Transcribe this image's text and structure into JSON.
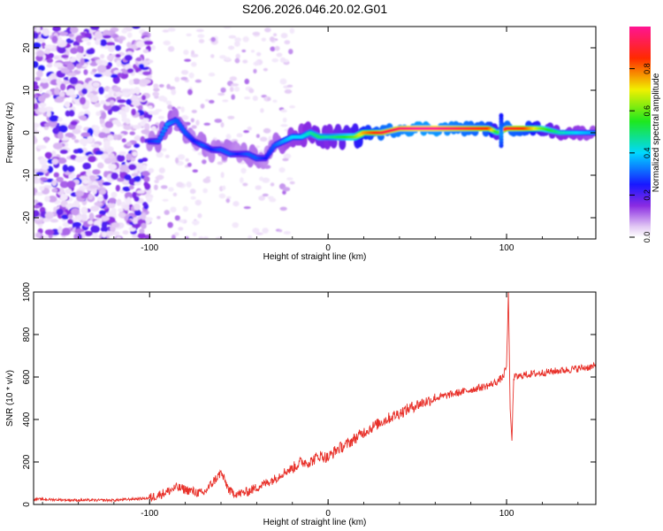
{
  "figure_title": "S206.2026.046.20.02.G01",
  "colors": {
    "snr_line": "#e8312a",
    "axis": "#000000",
    "background": "#ffffff"
  },
  "chart_data": [
    {
      "type": "heatmap",
      "name": "spectrogram",
      "title": "",
      "xlabel": "Height of straight line (km)",
      "ylabel": "Frequency (Hz)",
      "xlim": [
        -165,
        150
      ],
      "ylim": [
        -25,
        25
      ],
      "xticks": [
        -100,
        0,
        100
      ],
      "xtick_labels": [
        "-100",
        "0",
        "100"
      ],
      "yticks": [
        -20,
        -10,
        0,
        10,
        20
      ],
      "ytick_labels": [
        "-20",
        "-10",
        "0",
        "10",
        "20"
      ],
      "colorbar": {
        "label": "Normalized spectral amplitude",
        "range": [
          0.0,
          1.0
        ],
        "ticks": [
          0.0,
          0.2,
          0.4,
          0.6,
          0.8
        ],
        "tick_labels": [
          "0.0",
          "0.2",
          "0.4",
          "0.6",
          "0.8"
        ],
        "colormap": "rainbow (white→violet→blue→cyan→green→yellow→red→magenta)"
      },
      "ridge": {
        "description": "dominant spectral line of frequency vs height",
        "x": [
          -100,
          -95,
          -90,
          -85,
          -80,
          -75,
          -70,
          -65,
          -60,
          -55,
          -50,
          -45,
          -40,
          -35,
          -30,
          -25,
          -20,
          -15,
          -10,
          -5,
          0,
          5,
          10,
          15,
          20,
          30,
          40,
          50,
          60,
          70,
          80,
          90,
          95,
          100,
          110,
          120,
          130,
          140,
          150
        ],
        "y": [
          -2,
          -2,
          2,
          3,
          0,
          -2,
          -3,
          -4,
          -4,
          -5,
          -5,
          -5,
          -6,
          -6,
          -3,
          -2,
          -1,
          -1,
          0,
          -1,
          -1,
          -1,
          -1,
          -1,
          0,
          0,
          1,
          1,
          1,
          1,
          1,
          1,
          0,
          1,
          1,
          1,
          0,
          0,
          0
        ],
        "amplitude": [
          0.25,
          0.3,
          0.35,
          0.3,
          0.3,
          0.25,
          0.3,
          0.25,
          0.3,
          0.3,
          0.25,
          0.3,
          0.3,
          0.25,
          0.3,
          0.35,
          0.4,
          0.4,
          0.45,
          0.5,
          0.45,
          0.5,
          0.55,
          0.6,
          0.75,
          0.9,
          0.95,
          1.0,
          1.0,
          0.95,
          0.9,
          0.85,
          0.5,
          0.9,
          0.85,
          0.6,
          0.45,
          0.4,
          0.35
        ]
      },
      "noise_region_x": [
        -165,
        -100
      ]
    },
    {
      "type": "line",
      "name": "snr",
      "title": "",
      "xlabel": "Height of straight line (km)",
      "ylabel": "SNR (10 * v/v)",
      "xlim": [
        -165,
        150
      ],
      "ylim": [
        0,
        1000
      ],
      "xticks": [
        -100,
        0,
        100
      ],
      "xtick_labels": [
        "-100",
        "0",
        "100"
      ],
      "yticks": [
        0,
        200,
        400,
        600,
        800,
        1000
      ],
      "ytick_labels": [
        "0",
        "200",
        "400",
        "600",
        "800",
        "1000"
      ],
      "series": [
        {
          "name": "SNR",
          "x": [
            -165,
            -140,
            -120,
            -100,
            -90,
            -85,
            -80,
            -75,
            -70,
            -65,
            -60,
            -55,
            -50,
            -45,
            -40,
            -35,
            -30,
            -25,
            -20,
            -15,
            -10,
            -5,
            0,
            5,
            10,
            20,
            30,
            40,
            50,
            60,
            70,
            80,
            90,
            95,
            98,
            100,
            101,
            102,
            103,
            104,
            106,
            110,
            120,
            130,
            140,
            150
          ],
          "y": [
            25,
            20,
            20,
            30,
            60,
            80,
            70,
            60,
            50,
            100,
            150,
            60,
            50,
            60,
            80,
            100,
            120,
            150,
            170,
            200,
            200,
            230,
            220,
            260,
            280,
            340,
            390,
            430,
            470,
            500,
            520,
            540,
            560,
            580,
            600,
            650,
            1000,
            450,
            300,
            600,
            600,
            610,
            620,
            630,
            640,
            650
          ]
        }
      ]
    }
  ]
}
